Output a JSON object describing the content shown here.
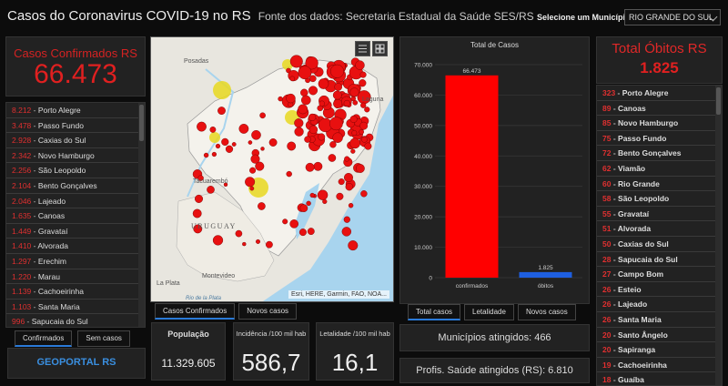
{
  "header": {
    "title": "Casos do Coronavirus COVID-19 no RS",
    "source": "Fonte dos dados: Secretaria Estadual da Saúde SES/RS",
    "municipio_label": "Selecione um Município",
    "municipio_value": "RIO GRANDE DO SUL"
  },
  "confirmed": {
    "label": "Casos Confirmados RS",
    "value": "66.473",
    "items": [
      {
        "n": "8.212",
        "city": "Porto Alegre"
      },
      {
        "n": "3.478",
        "city": "Passo Fundo"
      },
      {
        "n": "2.928",
        "city": "Caxias do Sul"
      },
      {
        "n": "2.342",
        "city": "Novo Hamburgo"
      },
      {
        "n": "2.256",
        "city": "São Leopoldo"
      },
      {
        "n": "2.104",
        "city": "Bento Gonçalves"
      },
      {
        "n": "2.046",
        "city": "Lajeado"
      },
      {
        "n": "1.635",
        "city": "Canoas"
      },
      {
        "n": "1.449",
        "city": "Gravataí"
      },
      {
        "n": "1.410",
        "city": "Alvorada"
      },
      {
        "n": "1.297",
        "city": "Erechim"
      },
      {
        "n": "1.220",
        "city": "Marau"
      },
      {
        "n": "1.139",
        "city": "Cachoeirinha"
      },
      {
        "n": "1.103",
        "city": "Santa Maria"
      },
      {
        "n": "996",
        "city": "Sapucaia do Sul"
      }
    ],
    "tabs": [
      "Confirmados",
      "Sem casos"
    ]
  },
  "geoportal": "GEOPORTAL RS",
  "map": {
    "labels": {
      "posadas": "Posadas",
      "tacuarembo": "Tacuarembó",
      "uruguay": "URUGUAY",
      "montevideo": "Montevideo",
      "laplata": "La Plata",
      "riodelaplata": "Rio de la Plata",
      "laguna": "Laguna"
    },
    "attribution": "Esri, HERE, Garmin, FAO, NOA...",
    "tabs": [
      "Casos Confirmados",
      "Novos casos"
    ]
  },
  "kpis": {
    "populacao": {
      "label": "População",
      "value": "11.329.605"
    },
    "incidencia": {
      "label": "Incidência /100 mil hab",
      "value": "586,7"
    },
    "letalidade": {
      "label": "Letalidade /100 mil hab",
      "value": "16,1"
    }
  },
  "chart_data": {
    "type": "bar",
    "title": "Total de Casos",
    "categories": [
      "confirmados",
      "óbitos"
    ],
    "values": [
      66473,
      1825
    ],
    "value_labels": [
      "66.473",
      "1.825"
    ],
    "colors": [
      "#ff0000",
      "#1e5fe0"
    ],
    "yticks": [
      "0",
      "10.000",
      "20.000",
      "30.000",
      "40.000",
      "50.000",
      "60.000",
      "70.000"
    ],
    "ylim": [
      0,
      70000
    ],
    "grid": true
  },
  "chart_tabs": [
    "Total casos",
    "Letalidade",
    "Novos casos"
  ],
  "municipios": "Municípios atingidos: 466",
  "profissionais": "Profis. Saúde atingidos (RS): 6.810",
  "deaths": {
    "label": "Total Óbitos RS",
    "value": "1.825",
    "items": [
      {
        "n": "323",
        "city": "Porto Alegre"
      },
      {
        "n": "89",
        "city": "Canoas"
      },
      {
        "n": "85",
        "city": "Novo Hamburgo"
      },
      {
        "n": "75",
        "city": "Passo Fundo"
      },
      {
        "n": "72",
        "city": "Bento Gonçalves"
      },
      {
        "n": "62",
        "city": "Viamão"
      },
      {
        "n": "60",
        "city": "Rio Grande"
      },
      {
        "n": "58",
        "city": "São Leopoldo"
      },
      {
        "n": "55",
        "city": "Gravataí"
      },
      {
        "n": "51",
        "city": "Alvorada"
      },
      {
        "n": "50",
        "city": "Caxias do Sul"
      },
      {
        "n": "28",
        "city": "Sapucaia do Sul"
      },
      {
        "n": "27",
        "city": "Campo Bom"
      },
      {
        "n": "26",
        "city": "Esteio"
      },
      {
        "n": "26",
        "city": "Lajeado"
      },
      {
        "n": "26",
        "city": "Santa Maria"
      },
      {
        "n": "20",
        "city": "Santo Ângelo"
      },
      {
        "n": "20",
        "city": "Sapiranga"
      },
      {
        "n": "19",
        "city": "Cachoeirinha"
      },
      {
        "n": "18",
        "city": "Guaíba"
      }
    ]
  }
}
